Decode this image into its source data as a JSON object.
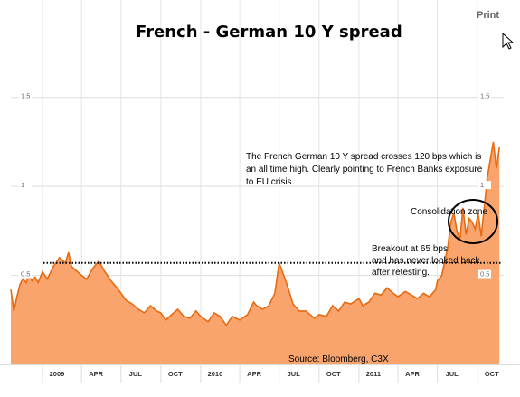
{
  "header": {
    "print_label": "Print",
    "cursor_icon": "pointer-cursor-icon"
  },
  "chart_data": {
    "type": "area",
    "title": "French - German 10 Y spread",
    "xlabel": "",
    "ylabel": "",
    "x_tick_labels": [
      "2009",
      "APR",
      "JUL",
      "OCT",
      "2010",
      "APR",
      "JUL",
      "OCT",
      "2011",
      "APR",
      "JUL",
      "OCT"
    ],
    "x_tick_dates": [
      "2009-01-01",
      "2009-04-01",
      "2009-07-01",
      "2009-10-01",
      "2010-01-01",
      "2010-04-01",
      "2010-07-01",
      "2010-10-01",
      "2011-01-01",
      "2011-04-01",
      "2011-07-01",
      "2011-10-01"
    ],
    "y_ticks_left": [
      "1.5",
      "1",
      "0.5"
    ],
    "y_ticks_right": [
      "1.5",
      "1",
      "0.5"
    ],
    "y_tick_values": [
      1.5,
      1.0,
      0.5
    ],
    "ylim": [
      0.0,
      1.6
    ],
    "xlim": [
      "2008-10-20",
      "2011-12-01"
    ],
    "grid": true,
    "fill_color": "#f9a46c",
    "line_color": "#e86a10",
    "annotations": [
      "The French German 10 Y spread crosses 120 bps which is",
      "an all time high. Clearly pointing to French Banks exposure",
      "to EU crisis.",
      "Consolidation zone",
      "Breakout at 65 bps",
      "and has never looked back",
      "after retesting.",
      "Source: Bloomberg, C3X"
    ],
    "reference_line": {
      "value": 0.57,
      "style": "dotted"
    },
    "series": [
      {
        "x": [
          "2008-10-20",
          "2008-10-27",
          "2008-11-03",
          "2008-11-10",
          "2008-11-17",
          "2008-11-24",
          "2008-12-01",
          "2008-12-08",
          "2008-12-15",
          "2008-12-22",
          "2009-01-01",
          "2009-01-12",
          "2009-01-26",
          "2009-02-09",
          "2009-02-23",
          "2009-03-02",
          "2009-03-09",
          "2009-03-23",
          "2009-04-01",
          "2009-04-13",
          "2009-04-27",
          "2009-05-11",
          "2009-05-25",
          "2009-06-08",
          "2009-06-22",
          "2009-07-01",
          "2009-07-13",
          "2009-07-27",
          "2009-08-10",
          "2009-08-24",
          "2009-09-07",
          "2009-09-21",
          "2009-10-01",
          "2009-10-12",
          "2009-10-26",
          "2009-11-09",
          "2009-11-23",
          "2009-12-07",
          "2009-12-21",
          "2010-01-01",
          "2010-01-18",
          "2010-02-01",
          "2010-02-15",
          "2010-03-01",
          "2010-03-15",
          "2010-04-01",
          "2010-04-19",
          "2010-05-03",
          "2010-05-10",
          "2010-05-24",
          "2010-06-07",
          "2010-06-21",
          "2010-07-01",
          "2010-07-19",
          "2010-08-02",
          "2010-08-16",
          "2010-09-01",
          "2010-09-20",
          "2010-10-01",
          "2010-10-18",
          "2010-11-01",
          "2010-11-15",
          "2010-11-29",
          "2010-12-13",
          "2011-01-01",
          "2011-01-10",
          "2011-01-24",
          "2011-02-07",
          "2011-02-21",
          "2011-03-07",
          "2011-03-21",
          "2011-04-01",
          "2011-04-18",
          "2011-05-02",
          "2011-05-16",
          "2011-05-30",
          "2011-06-13",
          "2011-06-27",
          "2011-07-01",
          "2011-07-11",
          "2011-07-25",
          "2011-08-01",
          "2011-08-08",
          "2011-08-15",
          "2011-08-22",
          "2011-08-29",
          "2011-09-05",
          "2011-09-12",
          "2011-09-19",
          "2011-09-26",
          "2011-10-03",
          "2011-10-10",
          "2011-10-17",
          "2011-10-24",
          "2011-10-31",
          "2011-11-07",
          "2011-11-14",
          "2011-11-21"
        ],
        "values": [
          0.42,
          0.3,
          0.38,
          0.45,
          0.48,
          0.46,
          0.5,
          0.47,
          0.49,
          0.46,
          0.52,
          0.48,
          0.55,
          0.6,
          0.57,
          0.63,
          0.55,
          0.52,
          0.5,
          0.48,
          0.54,
          0.58,
          0.52,
          0.47,
          0.43,
          0.4,
          0.36,
          0.34,
          0.31,
          0.29,
          0.33,
          0.3,
          0.29,
          0.25,
          0.28,
          0.31,
          0.27,
          0.26,
          0.3,
          0.27,
          0.24,
          0.29,
          0.27,
          0.22,
          0.27,
          0.25,
          0.28,
          0.35,
          0.33,
          0.31,
          0.33,
          0.4,
          0.57,
          0.45,
          0.34,
          0.3,
          0.3,
          0.26,
          0.28,
          0.27,
          0.33,
          0.3,
          0.35,
          0.34,
          0.37,
          0.33,
          0.35,
          0.4,
          0.39,
          0.43,
          0.4,
          0.38,
          0.41,
          0.39,
          0.37,
          0.4,
          0.38,
          0.42,
          0.47,
          0.5,
          0.66,
          0.8,
          0.85,
          0.75,
          0.7,
          0.88,
          0.73,
          0.82,
          0.8,
          0.76,
          0.85,
          0.72,
          0.88,
          1.05,
          1.15,
          1.25,
          1.1,
          1.22
        ]
      }
    ]
  }
}
